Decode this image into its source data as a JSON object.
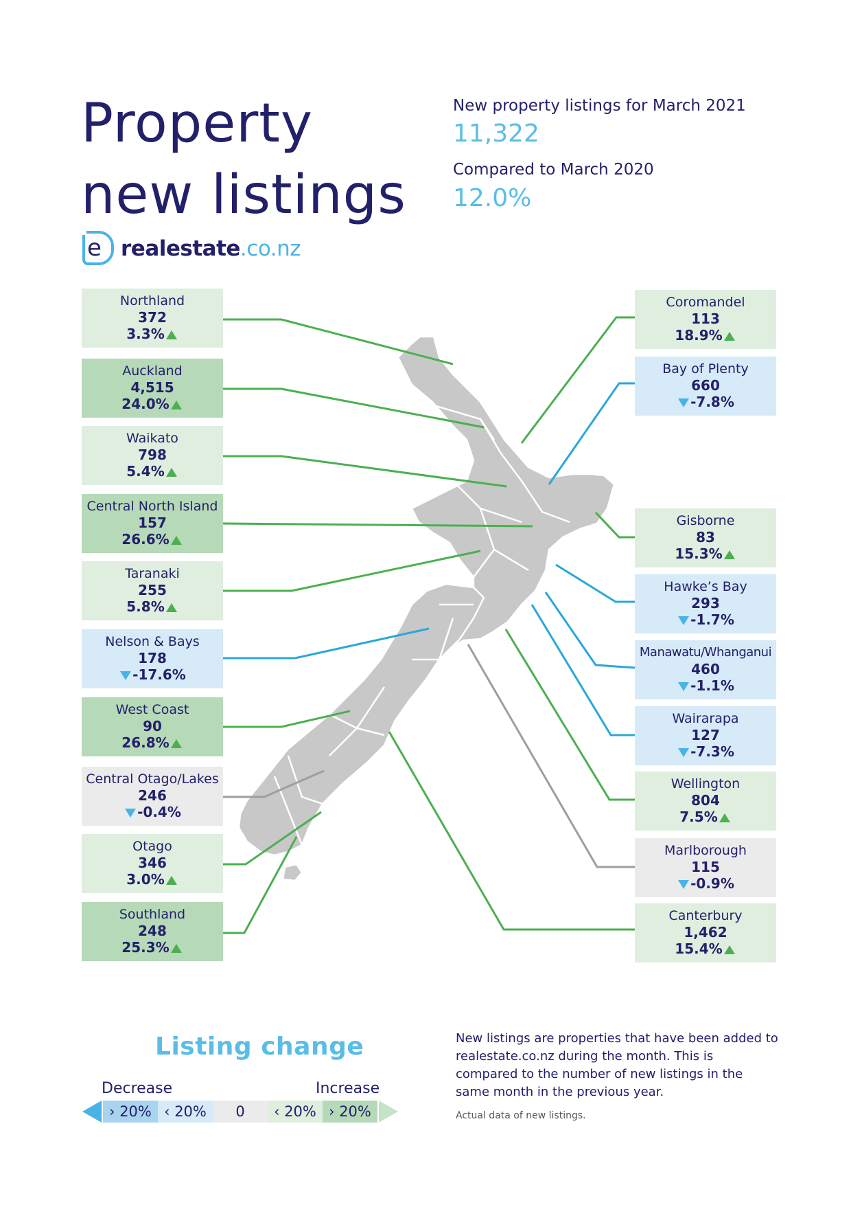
{
  "header": {
    "title_line1": "Property",
    "title_line2": "new listings",
    "stat1_label": "New property listings for March 2021",
    "stat1_value": "11,322",
    "stat2_label": "Compared to March 2020",
    "stat2_value": "12.0%"
  },
  "logo": {
    "text_main": "realestate",
    "text_suffix": ".co.nz"
  },
  "regions": {
    "northland": {
      "name": "Northland",
      "count": "372",
      "change": "3.3%",
      "direction": "up"
    },
    "auckland": {
      "name": "Auckland",
      "count": "4,515",
      "change": "24.0%",
      "direction": "up"
    },
    "waikato": {
      "name": "Waikato",
      "count": "798",
      "change": "5.4%",
      "direction": "up"
    },
    "central_north_island": {
      "name": "Central North Island",
      "count": "157",
      "change": "26.6%",
      "direction": "up"
    },
    "taranaki": {
      "name": "Taranaki",
      "count": "255",
      "change": "5.8%",
      "direction": "up"
    },
    "nelson_bays": {
      "name": "Nelson & Bays",
      "count": "178",
      "change": "-17.6%",
      "direction": "down"
    },
    "west_coast": {
      "name": "West Coast",
      "count": "90",
      "change": "26.8%",
      "direction": "up"
    },
    "central_otago_lakes": {
      "name": "Central Otago/Lakes",
      "count": "246",
      "change": "-0.4%",
      "direction": "down"
    },
    "otago": {
      "name": "Otago",
      "count": "346",
      "change": "3.0%",
      "direction": "up"
    },
    "southland": {
      "name": "Southland",
      "count": "248",
      "change": "25.3%",
      "direction": "up"
    },
    "coromandel": {
      "name": "Coromandel",
      "count": "113",
      "change": "18.9%",
      "direction": "up"
    },
    "bay_of_plenty": {
      "name": "Bay of Plenty",
      "count": "660",
      "change": "-7.8%",
      "direction": "down"
    },
    "gisborne": {
      "name": "Gisborne",
      "count": "83",
      "change": "15.3%",
      "direction": "up"
    },
    "hawkes_bay": {
      "name": "Hawke’s Bay",
      "count": "293",
      "change": "-1.7%",
      "direction": "down"
    },
    "manawatu_whanganui": {
      "name": "Manawatu/Whanganui",
      "count": "460",
      "change": "-1.1%",
      "direction": "down"
    },
    "wairarapa": {
      "name": "Wairarapa",
      "count": "127",
      "change": "-7.3%",
      "direction": "down"
    },
    "wellington": {
      "name": "Wellington",
      "count": "804",
      "change": "7.5%",
      "direction": "up"
    },
    "marlborough": {
      "name": "Marlborough",
      "count": "115",
      "change": "-0.9%",
      "direction": "down"
    },
    "canterbury": {
      "name": "Canterbury",
      "count": "1,462",
      "change": "15.4%",
      "direction": "up"
    }
  },
  "legend": {
    "title": "Listing change",
    "decrease_label": "Decrease",
    "increase_label": "Increase",
    "dec_big": "› 20%",
    "dec_small": "‹ 20%",
    "zero": "0",
    "inc_small": "‹ 20%",
    "inc_big": "› 20%"
  },
  "colors": {
    "increase_big": "#b6d9b8",
    "increase_small": "#dfeedf",
    "decrease_small": "#d6eaf8",
    "decrease_big": "#a9d4f0",
    "neutral": "#ebebeb",
    "line_green": "#4caf50",
    "line_blue": "#29a8d8",
    "line_grey": "#9e9e9e",
    "map_fill": "#c8c8c8"
  },
  "footer": {
    "description": "New listings are properties that have been added to realestate.co.nz during the month. This is compared to the number of new listings in the same month in the previous year.",
    "note": "Actual data of new listings."
  }
}
